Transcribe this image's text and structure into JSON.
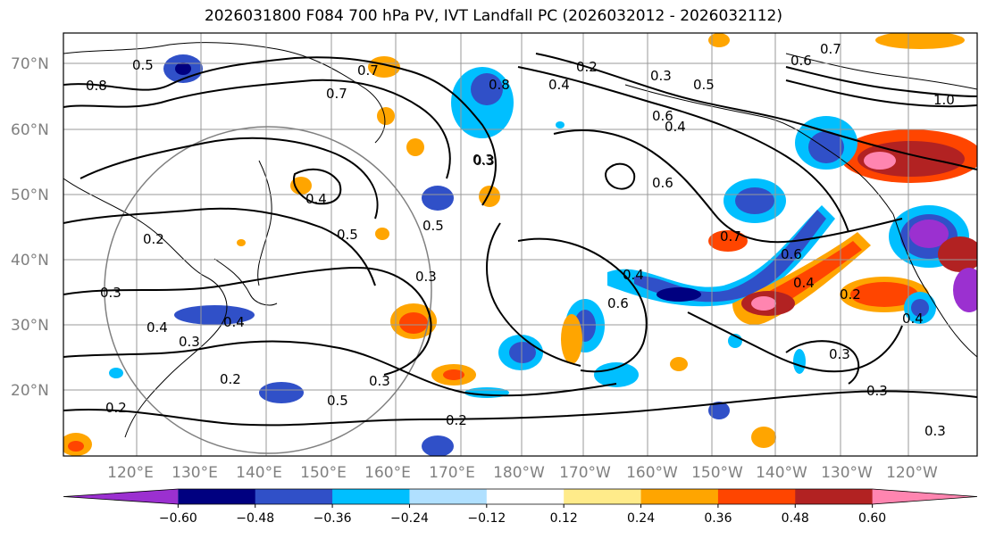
{
  "title": "2026031800 F084 700 hPa PV, IVT Landfall PC (2026032012 - 2026032112)",
  "lat_labels": [
    "70°N",
    "60°N",
    "50°N",
    "40°N",
    "30°N",
    "20°N"
  ],
  "lon_labels": [
    "120°E",
    "130°E",
    "140°E",
    "150°E",
    "160°E",
    "170°E",
    "180°W",
    "170°W",
    "160°W",
    "150°W",
    "140°W",
    "130°W",
    "120°W"
  ],
  "colorbar": {
    "colors": [
      "#9b30d0",
      "#000080",
      "#3050c8",
      "#00bfff",
      "#b0e0ff",
      "#ffffff",
      "#ffeb8a",
      "#ffa500",
      "#ff4500",
      "#b22222",
      "#ff85b0"
    ],
    "tick_labels": [
      "−0.60",
      "−0.48",
      "−0.36",
      "−0.24",
      "−0.12",
      "0.12",
      "0.24",
      "0.36",
      "0.48",
      "0.60"
    ]
  },
  "contour_labels": [
    "0.5",
    "0.8",
    "0.7",
    "0.7",
    "0.8",
    "0.4",
    "0.2",
    "0.3",
    "0.5",
    "0.6",
    "0.4",
    "0.3",
    "0.6",
    "0.4",
    "0.5",
    "0.5",
    "0.3",
    "0.2",
    "0.3",
    "0.4",
    "0.3",
    "0.4",
    "0.2",
    "0.3",
    "0.5",
    "0.3",
    "0.2",
    "0.4",
    "0.6",
    "0.7",
    "0.6",
    "0.4",
    "0.2",
    "0.3",
    "0.3",
    "0.3",
    "0.2",
    "0.4",
    "1.0",
    "0.6",
    "0.7"
  ]
}
